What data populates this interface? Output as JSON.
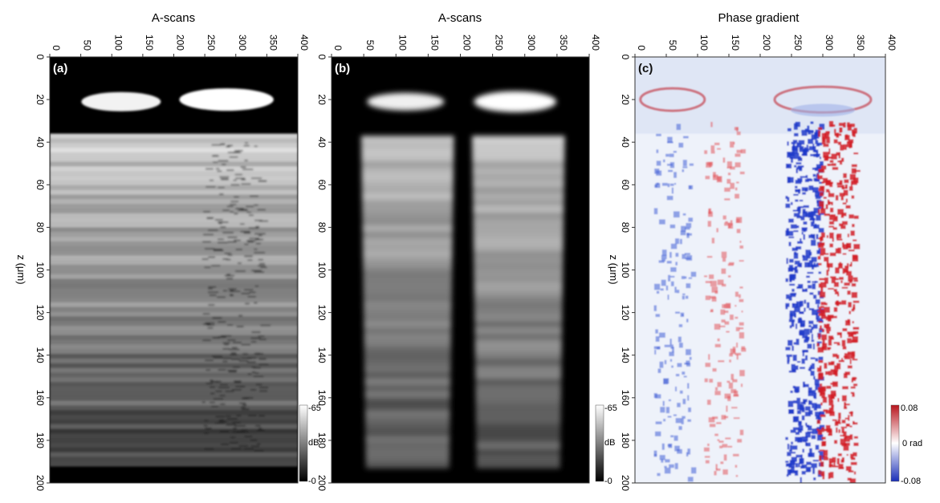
{
  "chart_data": [
    {
      "type": "heatmap",
      "panel_label": "(a)",
      "title": "A-scans",
      "ylabel": "z (μm)",
      "xlim": [
        0,
        400
      ],
      "ylim": [
        0,
        200
      ],
      "x_ticks": [
        "0",
        "50",
        "100",
        "150",
        "200",
        "250",
        "300",
        "350",
        "400"
      ],
      "y_ticks": [
        "0",
        "20",
        "40",
        "60",
        "80",
        "100",
        "120",
        "140",
        "160",
        "180",
        "200"
      ],
      "colormap": "grayscale",
      "colorbar": {
        "max_label": "-65",
        "unit_label": "dB",
        "min_label": "-0",
        "range": [
          0,
          -65
        ]
      }
    },
    {
      "type": "heatmap",
      "panel_label": "(b)",
      "title": "A-scans",
      "ylabel": "",
      "xlim": [
        0,
        400
      ],
      "ylim": [
        0,
        200
      ],
      "x_ticks": [
        "0",
        "50",
        "100",
        "150",
        "200",
        "250",
        "300",
        "350",
        "400"
      ],
      "y_ticks": [
        "0",
        "20",
        "40",
        "60",
        "80",
        "100",
        "120",
        "140",
        "160",
        "180",
        "200"
      ],
      "colormap": "grayscale",
      "colorbar": {
        "max_label": "-65",
        "unit_label": "dB",
        "min_label": "-0",
        "range": [
          0,
          -65
        ]
      }
    },
    {
      "type": "heatmap",
      "panel_label": "(c)",
      "title": "Phase gradient",
      "ylabel": "z (μm)",
      "xlim": [
        0,
        400
      ],
      "ylim": [
        0,
        200
      ],
      "x_ticks": [
        "0",
        "50",
        "100",
        "150",
        "200",
        "250",
        "300",
        "350",
        "400"
      ],
      "y_ticks": [
        "0",
        "20",
        "40",
        "60",
        "80",
        "100",
        "120",
        "140",
        "160",
        "180",
        "200"
      ],
      "colormap": "diverging blue-white-red",
      "colorbar": {
        "max_label": "0.08",
        "unit_label": "0 rad",
        "min_label": "-0.08",
        "range": [
          -0.08,
          0.08
        ]
      }
    }
  ]
}
